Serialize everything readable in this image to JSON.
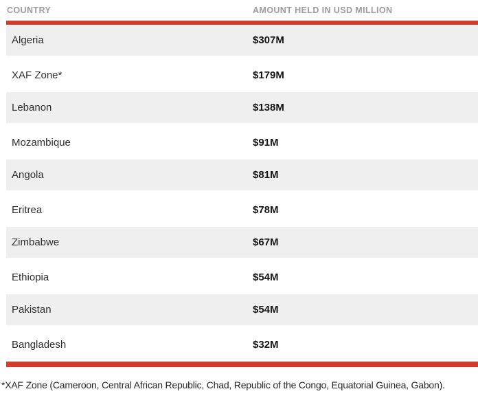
{
  "table": {
    "columns": [
      {
        "label": "COUNTRY"
      },
      {
        "label": "AMOUNT HELD IN USD MILLION"
      }
    ],
    "rows": [
      {
        "country": "Algeria",
        "amount": "$307M"
      },
      {
        "country": "XAF Zone*",
        "amount": "$179M"
      },
      {
        "country": "Lebanon",
        "amount": "$138M"
      },
      {
        "country": "Mozambique",
        "amount": "$91M"
      },
      {
        "country": "Angola",
        "amount": "$81M"
      },
      {
        "country": "Eritrea",
        "amount": "$78M"
      },
      {
        "country": "Zimbabwe",
        "amount": "$67M"
      },
      {
        "country": "Ethiopia",
        "amount": "$54M"
      },
      {
        "country": "Pakistan",
        "amount": "$54M"
      },
      {
        "country": "Bangladesh",
        "amount": "$32M"
      }
    ]
  },
  "footnote": "*XAF Zone (Cameroon, Central African Republic, Chad, Republic of the Congo, Equatorial Guinea, Gabon).",
  "colors": {
    "accent_red": "#d23b2b",
    "row_alt_bg": "#efefef",
    "header_text": "#9b9b9b",
    "country_text": "#2e2e2e",
    "amount_text": "#151515",
    "footnote_text": "#262626"
  },
  "chart_data": {
    "type": "table",
    "columns": [
      "COUNTRY",
      "AMOUNT HELD IN USD MILLION"
    ],
    "rows": [
      [
        "Algeria",
        307
      ],
      [
        "XAF Zone*",
        179
      ],
      [
        "Lebanon",
        138
      ],
      [
        "Mozambique",
        91
      ],
      [
        "Angola",
        81
      ],
      [
        "Eritrea",
        78
      ],
      [
        "Zimbabwe",
        67
      ],
      [
        "Ethiopia",
        54
      ],
      [
        "Pakistan",
        54
      ],
      [
        "Bangladesh",
        32
      ]
    ],
    "unit": "USD million",
    "footnote": "*XAF Zone (Cameroon, Central African Republic, Chad, Republic of the Congo, Equatorial Guinea, Gabon).",
    "layout": {
      "alternating_row_shading": true,
      "accent_rules": "top and bottom, red"
    }
  }
}
